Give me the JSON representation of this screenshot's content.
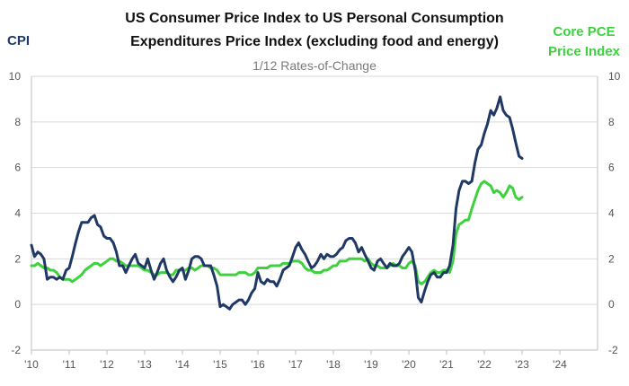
{
  "chart_data": {
    "type": "line",
    "title_lines": [
      "US Consumer Price Index to US Personal Consumption",
      "Expenditures Price Index (excluding food and energy)"
    ],
    "subtitle": "1/12 Rates-of-Change",
    "left_axis_label": "CPI",
    "right_axis_label_lines": [
      "Core PCE",
      "Price Index"
    ],
    "ylim": [
      -2,
      10
    ],
    "y_ticks": [
      -2,
      0,
      2,
      4,
      6,
      8,
      10
    ],
    "y_tick_labels": [
      "-2",
      "0",
      "2",
      "4",
      "6",
      "8",
      "10"
    ],
    "xlim": [
      2010,
      2025
    ],
    "x_ticks": [
      2010,
      2011,
      2012,
      2013,
      2014,
      2015,
      2016,
      2017,
      2018,
      2019,
      2020,
      2021,
      2022,
      2023,
      2024
    ],
    "x_tick_labels": [
      "'10",
      "'11",
      "'12",
      "'13",
      "'14",
      "'15",
      "'16",
      "'17",
      "'18",
      "'19",
      "'20",
      "'21",
      "'22",
      "'23",
      "'24"
    ],
    "grid": "horizontal",
    "series": [
      {
        "name": "CPI",
        "color": "#1f3864",
        "x": [
          2010.0,
          2010.08,
          2010.17,
          2010.25,
          2010.33,
          2010.42,
          2010.5,
          2010.58,
          2010.67,
          2010.75,
          2010.83,
          2010.92,
          2011.0,
          2011.08,
          2011.17,
          2011.25,
          2011.33,
          2011.42,
          2011.5,
          2011.58,
          2011.67,
          2011.75,
          2011.83,
          2011.92,
          2012.0,
          2012.08,
          2012.17,
          2012.25,
          2012.33,
          2012.42,
          2012.5,
          2012.58,
          2012.67,
          2012.75,
          2012.83,
          2012.92,
          2013.0,
          2013.08,
          2013.17,
          2013.25,
          2013.33,
          2013.42,
          2013.5,
          2013.58,
          2013.67,
          2013.75,
          2013.83,
          2013.92,
          2014.0,
          2014.08,
          2014.17,
          2014.25,
          2014.33,
          2014.42,
          2014.5,
          2014.58,
          2014.67,
          2014.75,
          2014.83,
          2014.92,
          2015.0,
          2015.08,
          2015.17,
          2015.25,
          2015.33,
          2015.42,
          2015.5,
          2015.58,
          2015.67,
          2015.75,
          2015.83,
          2015.92,
          2016.0,
          2016.08,
          2016.17,
          2016.25,
          2016.33,
          2016.42,
          2016.5,
          2016.58,
          2016.67,
          2016.75,
          2016.83,
          2016.92,
          2017.0,
          2017.08,
          2017.17,
          2017.25,
          2017.33,
          2017.42,
          2017.5,
          2017.58,
          2017.67,
          2017.75,
          2017.83,
          2017.92,
          2018.0,
          2018.08,
          2018.17,
          2018.25,
          2018.33,
          2018.42,
          2018.5,
          2018.58,
          2018.67,
          2018.75,
          2018.83,
          2018.92,
          2019.0,
          2019.08,
          2019.17,
          2019.25,
          2019.33,
          2019.42,
          2019.5,
          2019.58,
          2019.67,
          2019.75,
          2019.83,
          2019.92,
          2020.0,
          2020.08,
          2020.17,
          2020.25,
          2020.33,
          2020.42,
          2020.5,
          2020.58,
          2020.67,
          2020.75,
          2020.83,
          2020.92,
          2021.0,
          2021.08,
          2021.17,
          2021.25,
          2021.33,
          2021.42,
          2021.5,
          2021.58,
          2021.67,
          2021.75,
          2021.83,
          2021.92,
          2022.0,
          2022.08,
          2022.17,
          2022.25,
          2022.33,
          2022.42,
          2022.5,
          2022.58,
          2022.67,
          2022.75,
          2022.83,
          2022.92,
          2023.0
        ],
        "values": [
          2.6,
          2.1,
          2.3,
          2.2,
          2.0,
          1.1,
          1.2,
          1.2,
          1.1,
          1.2,
          1.1,
          1.5,
          1.6,
          2.1,
          2.7,
          3.2,
          3.6,
          3.6,
          3.6,
          3.8,
          3.9,
          3.5,
          3.4,
          3.0,
          2.9,
          2.9,
          2.7,
          2.3,
          1.7,
          1.7,
          1.4,
          1.7,
          2.0,
          2.2,
          1.8,
          1.7,
          1.6,
          2.0,
          1.5,
          1.1,
          1.4,
          1.8,
          2.0,
          1.5,
          1.2,
          1.0,
          1.2,
          1.5,
          1.6,
          1.1,
          1.5,
          2.0,
          2.1,
          2.1,
          2.0,
          1.7,
          1.7,
          1.7,
          1.3,
          0.8,
          -0.1,
          0.0,
          -0.1,
          -0.2,
          0.0,
          0.1,
          0.2,
          0.2,
          0.0,
          0.2,
          0.5,
          0.7,
          1.4,
          1.0,
          0.9,
          1.1,
          1.0,
          1.0,
          0.8,
          1.1,
          1.5,
          1.6,
          1.7,
          2.1,
          2.5,
          2.7,
          2.4,
          2.2,
          1.9,
          1.6,
          1.7,
          1.9,
          2.2,
          2.0,
          2.2,
          2.1,
          2.1,
          2.2,
          2.4,
          2.5,
          2.8,
          2.9,
          2.9,
          2.7,
          2.3,
          2.5,
          2.2,
          1.9,
          1.6,
          1.5,
          1.9,
          2.0,
          1.8,
          1.6,
          1.8,
          1.7,
          1.7,
          1.8,
          2.1,
          2.3,
          2.5,
          2.3,
          1.5,
          0.3,
          0.1,
          0.6,
          1.0,
          1.3,
          1.4,
          1.2,
          1.2,
          1.4,
          1.4,
          1.7,
          2.6,
          4.2,
          5.0,
          5.4,
          5.4,
          5.3,
          5.4,
          6.2,
          6.8,
          7.0,
          7.5,
          7.9,
          8.5,
          8.3,
          8.6,
          9.1,
          8.5,
          8.3,
          8.2,
          7.7,
          7.1,
          6.5,
          6.4
        ],
        "axis": "left"
      },
      {
        "name": "Core PCE Price Index",
        "color": "#3dd13d",
        "x": [
          2010.0,
          2010.08,
          2010.17,
          2010.25,
          2010.33,
          2010.42,
          2010.5,
          2010.58,
          2010.67,
          2010.75,
          2010.83,
          2010.92,
          2011.0,
          2011.08,
          2011.17,
          2011.25,
          2011.33,
          2011.42,
          2011.5,
          2011.58,
          2011.67,
          2011.75,
          2011.83,
          2011.92,
          2012.0,
          2012.08,
          2012.17,
          2012.25,
          2012.33,
          2012.42,
          2012.5,
          2012.58,
          2012.67,
          2012.75,
          2012.83,
          2012.92,
          2013.0,
          2013.08,
          2013.17,
          2013.25,
          2013.33,
          2013.42,
          2013.5,
          2013.58,
          2013.67,
          2013.75,
          2013.83,
          2013.92,
          2014.0,
          2014.08,
          2014.17,
          2014.25,
          2014.33,
          2014.42,
          2014.5,
          2014.58,
          2014.67,
          2014.75,
          2014.83,
          2014.92,
          2015.0,
          2015.08,
          2015.17,
          2015.25,
          2015.33,
          2015.42,
          2015.5,
          2015.58,
          2015.67,
          2015.75,
          2015.83,
          2015.92,
          2016.0,
          2016.08,
          2016.17,
          2016.25,
          2016.33,
          2016.42,
          2016.5,
          2016.58,
          2016.67,
          2016.75,
          2016.83,
          2016.92,
          2017.0,
          2017.08,
          2017.17,
          2017.25,
          2017.33,
          2017.42,
          2017.5,
          2017.58,
          2017.67,
          2017.75,
          2017.83,
          2017.92,
          2018.0,
          2018.08,
          2018.17,
          2018.25,
          2018.33,
          2018.42,
          2018.5,
          2018.58,
          2018.67,
          2018.75,
          2018.83,
          2018.92,
          2019.0,
          2019.08,
          2019.17,
          2019.25,
          2019.33,
          2019.42,
          2019.5,
          2019.58,
          2019.67,
          2019.75,
          2019.83,
          2019.92,
          2020.0,
          2020.08,
          2020.17,
          2020.25,
          2020.33,
          2020.42,
          2020.5,
          2020.58,
          2020.67,
          2020.75,
          2020.83,
          2020.92,
          2021.0,
          2021.08,
          2021.17,
          2021.25,
          2021.33,
          2021.42,
          2021.5,
          2021.58,
          2021.67,
          2021.75,
          2021.83,
          2021.92,
          2022.0,
          2022.08,
          2022.17,
          2022.25,
          2022.33,
          2022.42,
          2022.5,
          2022.58,
          2022.67,
          2022.75,
          2022.83,
          2022.92,
          2023.0
        ],
        "values": [
          1.7,
          1.7,
          1.8,
          1.7,
          1.6,
          1.6,
          1.5,
          1.5,
          1.4,
          1.2,
          1.1,
          1.1,
          1.1,
          1.0,
          1.1,
          1.2,
          1.3,
          1.5,
          1.6,
          1.7,
          1.8,
          1.8,
          1.7,
          1.8,
          1.9,
          2.0,
          2.0,
          1.9,
          1.9,
          1.8,
          1.7,
          1.7,
          1.7,
          1.7,
          1.7,
          1.6,
          1.5,
          1.5,
          1.4,
          1.3,
          1.3,
          1.4,
          1.4,
          1.4,
          1.3,
          1.3,
          1.5,
          1.5,
          1.5,
          1.5,
          1.6,
          1.6,
          1.5,
          1.6,
          1.7,
          1.7,
          1.7,
          1.6,
          1.6,
          1.5,
          1.3,
          1.3,
          1.3,
          1.3,
          1.3,
          1.3,
          1.4,
          1.4,
          1.4,
          1.3,
          1.3,
          1.4,
          1.6,
          1.6,
          1.6,
          1.6,
          1.7,
          1.7,
          1.7,
          1.7,
          1.8,
          1.8,
          1.8,
          1.9,
          1.9,
          1.9,
          1.8,
          1.6,
          1.5,
          1.5,
          1.4,
          1.4,
          1.4,
          1.5,
          1.5,
          1.6,
          1.7,
          1.7,
          1.9,
          1.9,
          1.9,
          2.0,
          2.0,
          2.0,
          2.0,
          2.0,
          1.9,
          2.0,
          1.8,
          1.7,
          1.7,
          1.6,
          1.6,
          1.6,
          1.7,
          1.8,
          1.7,
          1.7,
          1.6,
          1.6,
          1.8,
          1.9,
          1.7,
          1.0,
          0.9,
          1.0,
          1.2,
          1.4,
          1.5,
          1.4,
          1.4,
          1.5,
          1.5,
          1.4,
          1.9,
          3.1,
          3.5,
          3.6,
          3.7,
          3.7,
          4.2,
          4.6,
          5.0,
          5.3,
          5.4,
          5.3,
          5.2,
          4.9,
          5.0,
          4.9,
          4.7,
          4.9,
          5.2,
          5.1,
          4.7,
          4.6,
          4.7
        ]
      }
    ]
  }
}
